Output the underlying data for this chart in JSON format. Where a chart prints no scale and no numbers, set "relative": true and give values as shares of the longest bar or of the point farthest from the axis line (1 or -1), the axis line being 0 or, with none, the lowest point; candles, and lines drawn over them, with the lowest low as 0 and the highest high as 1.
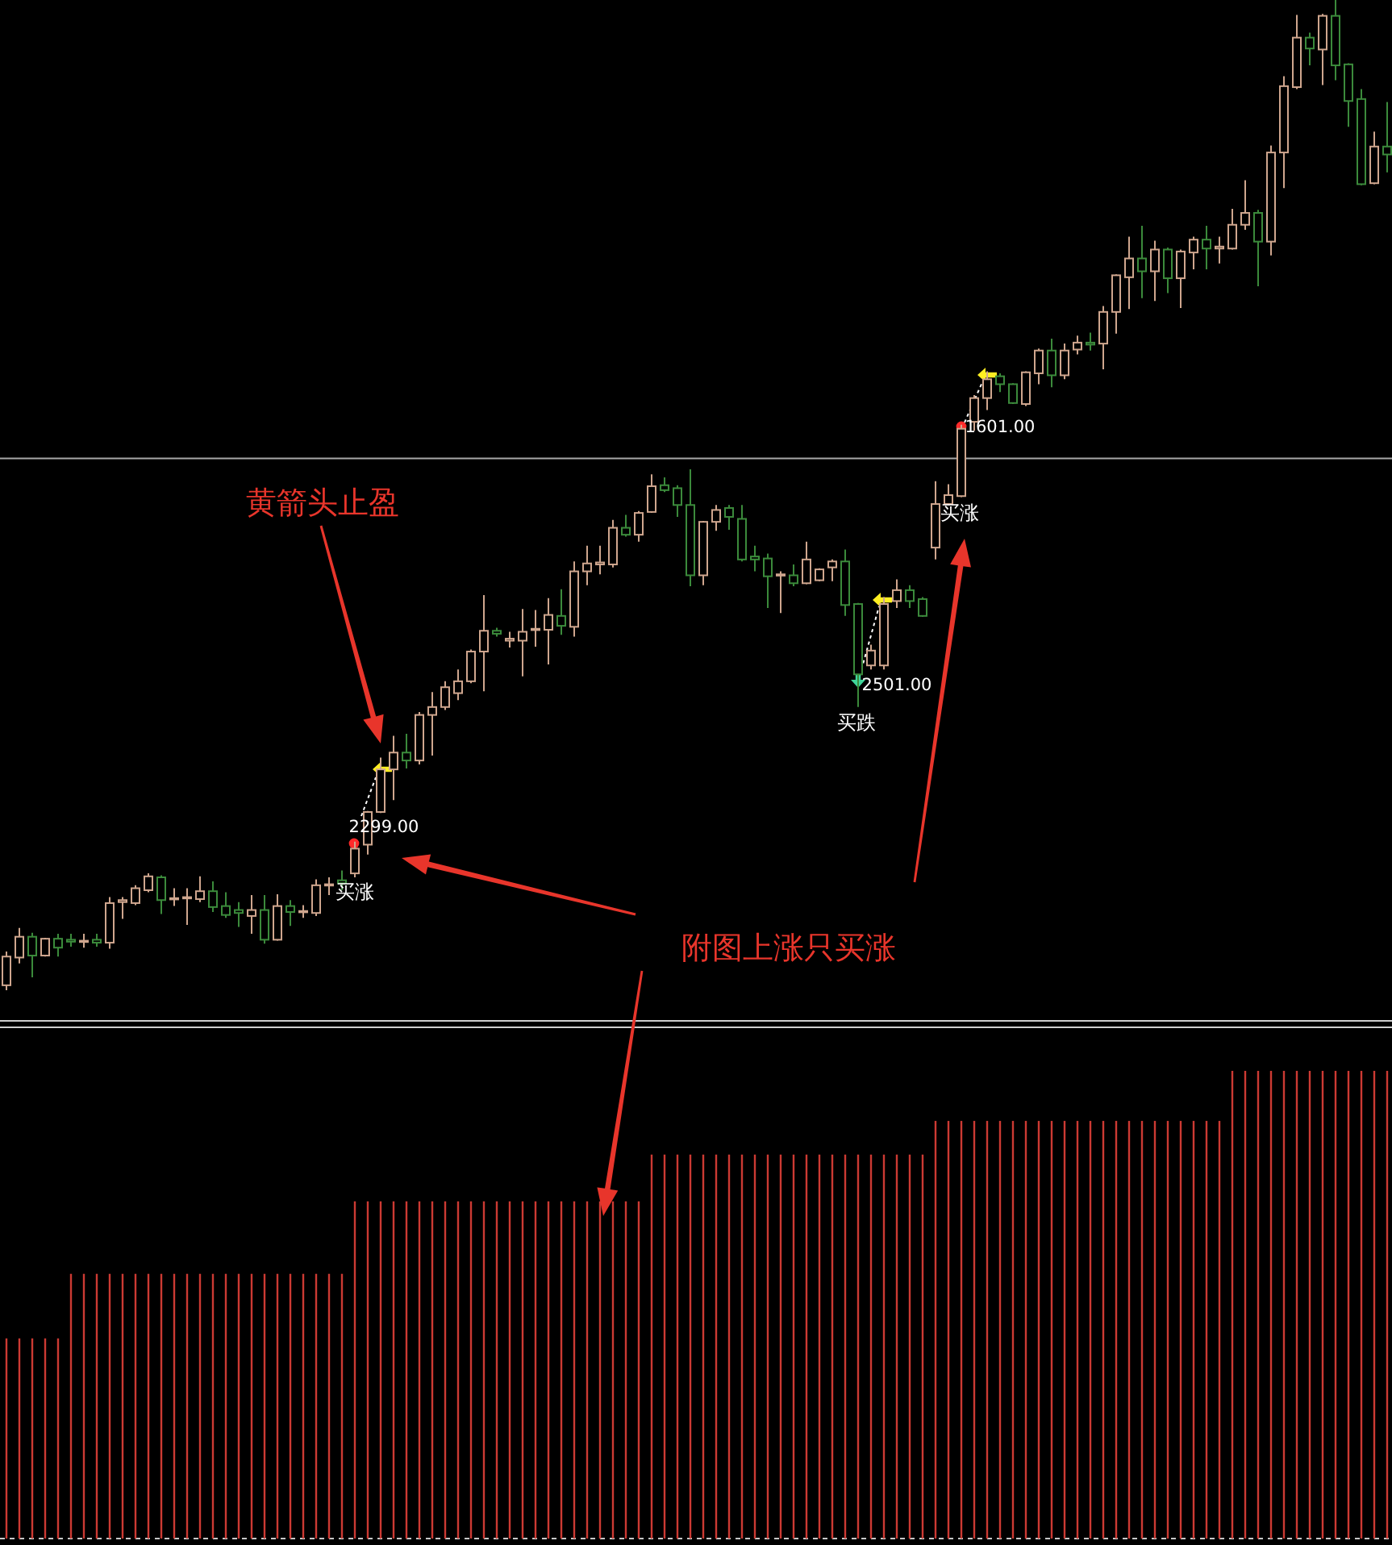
{
  "chart_data": [
    {
      "type": "candlestick",
      "relative": true,
      "categories": [
        null,
        null,
        null,
        null,
        null,
        null,
        null,
        null,
        null,
        null,
        null,
        null,
        null,
        null,
        null,
        null,
        null,
        null,
        null,
        null,
        null,
        null,
        null,
        null,
        null,
        null,
        null,
        null,
        null,
        null,
        null,
        null,
        null,
        null,
        null,
        null,
        null,
        null,
        null,
        null,
        null,
        null,
        null,
        null,
        null,
        null,
        null,
        null,
        null,
        null,
        null,
        null,
        null,
        null,
        null,
        null,
        null,
        null,
        null,
        null,
        null,
        null,
        null,
        null,
        null,
        null,
        null,
        null,
        null,
        null,
        null,
        null,
        null,
        null,
        null,
        null,
        null,
        null,
        null,
        null,
        null,
        null,
        null,
        null,
        null,
        null,
        null,
        null,
        null,
        null,
        null,
        null,
        null,
        null,
        null,
        null,
        null,
        null,
        null,
        null,
        null,
        null,
        null,
        null,
        null,
        null,
        null,
        null
      ],
      "ohlc": [
        [
          0.005,
          0.039,
          0,
          0.034
        ],
        [
          0.033,
          0.063,
          0.027,
          0.054
        ],
        [
          0.054,
          0.058,
          0.013,
          0.035
        ],
        [
          0.035,
          0.053,
          0.034,
          0.052
        ],
        [
          0.052,
          0.057,
          0.034,
          0.043
        ],
        [
          0.051,
          0.057,
          0.044,
          0.049
        ],
        [
          0.049,
          0.057,
          0.043,
          0.05
        ],
        [
          0.051,
          0.057,
          0.044,
          0.048
        ],
        [
          0.048,
          0.094,
          0.042,
          0.088
        ],
        [
          0.089,
          0.094,
          0.072,
          0.091
        ],
        [
          0.088,
          0.106,
          0.086,
          0.103
        ],
        [
          0.101,
          0.118,
          0.099,
          0.115
        ],
        [
          0.114,
          0.116,
          0.077,
          0.091
        ],
        [
          0.092,
          0.103,
          0.085,
          0.093
        ],
        [
          0.093,
          0.103,
          0.066,
          0.094
        ],
        [
          0.092,
          0.115,
          0.089,
          0.1
        ],
        [
          0.1,
          0.11,
          0.079,
          0.084
        ],
        [
          0.085,
          0.099,
          0.073,
          0.076
        ],
        [
          0.081,
          0.089,
          0.064,
          0.078
        ],
        [
          0.075,
          0.096,
          0.057,
          0.081
        ],
        [
          0.081,
          0.096,
          0.047,
          0.051
        ],
        [
          0.051,
          0.097,
          0.05,
          0.085
        ],
        [
          0.085,
          0.091,
          0.065,
          0.079
        ],
        [
          0.079,
          0.086,
          0.073,
          0.08
        ],
        [
          0.078,
          0.112,
          0.075,
          0.106
        ],
        [
          0.106,
          0.114,
          0.096,
          0.107
        ],
        [
          0.111,
          0.121,
          0.101,
          0.108
        ],
        [
          0.118,
          0.15,
          0.114,
          0.143
        ],
        [
          0.147,
          0.181,
          0.137,
          0.18
        ],
        [
          0.18,
          0.235,
          0.179,
          0.223
        ],
        [
          0.223,
          0.257,
          0.192,
          0.24
        ],
        [
          0.24,
          0.259,
          0.224,
          0.232
        ],
        [
          0.232,
          0.281,
          0.228,
          0.278
        ],
        [
          0.278,
          0.301,
          0.237,
          0.286
        ],
        [
          0.286,
          0.312,
          0.283,
          0.306
        ],
        [
          0.3,
          0.324,
          0.293,
          0.312
        ],
        [
          0.312,
          0.344,
          0.31,
          0.342
        ],
        [
          0.342,
          0.399,
          0.302,
          0.363
        ],
        [
          0.363,
          0.366,
          0.357,
          0.36
        ],
        [
          0.353,
          0.362,
          0.346,
          0.355
        ],
        [
          0.353,
          0.385,
          0.317,
          0.362
        ],
        [
          0.364,
          0.384,
          0.347,
          0.365
        ],
        [
          0.364,
          0.396,
          0.329,
          0.379
        ],
        [
          0.378,
          0.405,
          0.359,
          0.368
        ],
        [
          0.367,
          0.433,
          0.357,
          0.423
        ],
        [
          0.423,
          0.449,
          0.409,
          0.431
        ],
        [
          0.43,
          0.449,
          0.42,
          0.432
        ],
        [
          0.43,
          0.475,
          0.427,
          0.467
        ],
        [
          0.467,
          0.48,
          0.458,
          0.46
        ],
        [
          0.46,
          0.484,
          0.453,
          0.482
        ],
        [
          0.483,
          0.521,
          0.482,
          0.509
        ],
        [
          0.51,
          0.518,
          0.503,
          0.505
        ],
        [
          0.507,
          0.51,
          0.478,
          0.49
        ],
        [
          0.49,
          0.526,
          0.408,
          0.419
        ],
        [
          0.419,
          0.474,
          0.409,
          0.473
        ],
        [
          0.473,
          0.49,
          0.464,
          0.485
        ],
        [
          0.487,
          0.49,
          0.465,
          0.478
        ],
        [
          0.476,
          0.49,
          0.433,
          0.435
        ],
        [
          0.438,
          0.449,
          0.423,
          0.435
        ],
        [
          0.436,
          0.441,
          0.386,
          0.418
        ],
        [
          0.419,
          0.423,
          0.381,
          0.42
        ],
        [
          0.419,
          0.43,
          0.408,
          0.411
        ],
        [
          0.411,
          0.453,
          0.41,
          0.435
        ],
        [
          0.414,
          0.426,
          0.413,
          0.425
        ],
        [
          0.427,
          0.435,
          0.413,
          0.433
        ],
        [
          0.433,
          0.445,
          0.378,
          0.389
        ],
        [
          0.39,
          0.391,
          0.286,
          0.319
        ],
        [
          0.328,
          0.349,
          0.324,
          0.343
        ],
        [
          0.328,
          0.397,
          0.324,
          0.39
        ],
        [
          0.393,
          0.415,
          0.386,
          0.404
        ],
        [
          0.404,
          0.409,
          0.386,
          0.393
        ],
        [
          0.395,
          0.397,
          0.377,
          0.378
        ],
        [
          0.447,
          0.514,
          0.435,
          0.491
        ],
        [
          0.491,
          0.511,
          0.49,
          0.5
        ],
        [
          0.499,
          0.571,
          0.498,
          0.567
        ],
        [
          0.574,
          0.601,
          0.565,
          0.598
        ],
        [
          0.598,
          0.625,
          0.586,
          0.617
        ],
        [
          0.62,
          0.623,
          0.604,
          0.612
        ],
        [
          0.612,
          0.613,
          0.592,
          0.593
        ],
        [
          0.592,
          0.625,
          0.59,
          0.624
        ],
        [
          0.623,
          0.648,
          0.612,
          0.646
        ],
        [
          0.646,
          0.658,
          0.609,
          0.621
        ],
        [
          0.621,
          0.653,
          0.617,
          0.646
        ],
        [
          0.647,
          0.661,
          0.642,
          0.654
        ],
        [
          0.654,
          0.664,
          0.646,
          0.652
        ],
        [
          0.653,
          0.691,
          0.627,
          0.685
        ],
        [
          0.685,
          0.723,
          0.663,
          0.722
        ],
        [
          0.72,
          0.761,
          0.688,
          0.739
        ],
        [
          0.739,
          0.772,
          0.699,
          0.726
        ],
        [
          0.726,
          0.757,
          0.696,
          0.748
        ],
        [
          0.748,
          0.75,
          0.704,
          0.719
        ],
        [
          0.719,
          0.748,
          0.689,
          0.746
        ],
        [
          0.745,
          0.761,
          0.728,
          0.758
        ],
        [
          0.758,
          0.772,
          0.728,
          0.749
        ],
        [
          0.749,
          0.761,
          0.734,
          0.751
        ],
        [
          0.749,
          0.789,
          0.748,
          0.773
        ],
        [
          0.773,
          0.818,
          0.768,
          0.785
        ],
        [
          0.785,
          0.788,
          0.711,
          0.756
        ],
        [
          0.756,
          0.853,
          0.742,
          0.846
        ],
        [
          0.846,
          0.923,
          0.81,
          0.913
        ],
        [
          0.912,
          0.985,
          0.91,
          0.962
        ],
        [
          0.962,
          0.967,
          0.934,
          0.951
        ],
        [
          0.95,
          0.986,
          0.914,
          0.984
        ],
        [
          0.984,
          1,
          0.919,
          0.934
        ],
        [
          0.935,
          0.936,
          0.872,
          0.898
        ],
        [
          0.9,
          0.91,
          0.813,
          0.814
        ],
        [
          0.815,
          0.867,
          0.814,
          0.852
        ],
        [
          0.852,
          0.897,
          0.826,
          0.844
        ]
      ],
      "colors": [
        "#cfa68e",
        "#cfa68e",
        "#3b8a3b",
        "#cfa68e",
        "#3b8a3b",
        "#3b8a3b",
        "#cfa68e",
        "#3b8a3b",
        "#cfa68e",
        "#cfa68e",
        "#cfa68e",
        "#cfa68e",
        "#3b8a3b",
        "#cfa68e",
        "#cfa68e",
        "#cfa68e",
        "#3b8a3b",
        "#3b8a3b",
        "#3b8a3b",
        "#cfa68e",
        "#3b8a3b",
        "#cfa68e",
        "#3b8a3b",
        "#cfa68e",
        "#cfa68e",
        "#cfa68e",
        "#3b8a3b",
        "#cfa68e",
        "#cfa68e",
        "#cfa68e",
        "#cfa68e",
        "#3b8a3b",
        "#cfa68e",
        "#cfa68e",
        "#cfa68e",
        "#cfa68e",
        "#cfa68e",
        "#cfa68e",
        "#3b8a3b",
        "#cfa68e",
        "#cfa68e",
        "#cfa68e",
        "#cfa68e",
        "#3b8a3b",
        "#cfa68e",
        "#cfa68e",
        "#cfa68e",
        "#cfa68e",
        "#3b8a3b",
        "#cfa68e",
        "#cfa68e",
        "#3b8a3b",
        "#3b8a3b",
        "#3b8a3b",
        "#cfa68e",
        "#cfa68e",
        "#3b8a3b",
        "#3b8a3b",
        "#3b8a3b",
        "#3b8a3b",
        "#cfa68e",
        "#3b8a3b",
        "#cfa68e",
        "#cfa68e",
        "#cfa68e",
        "#3b8a3b",
        "#3b8a3b",
        "#cfa68e",
        "#cfa68e",
        "#cfa68e",
        "#3b8a3b",
        "#3b8a3b",
        "#cfa68e",
        "#cfa68e",
        "#cfa68e",
        "#cfa68e",
        "#cfa68e",
        "#3b8a3b",
        "#3b8a3b",
        "#cfa68e",
        "#cfa68e",
        "#3b8a3b",
        "#cfa68e",
        "#cfa68e",
        "#3b8a3b",
        "#cfa68e",
        "#cfa68e",
        "#cfa68e",
        "#3b8a3b",
        "#cfa68e",
        "#3b8a3b",
        "#cfa68e",
        "#cfa68e",
        "#3b8a3b",
        "#cfa68e",
        "#cfa68e",
        "#cfa68e",
        "#3b8a3b",
        "#cfa68e",
        "#cfa68e",
        "#cfa68e",
        "#3b8a3b",
        "#cfa68e",
        "#3b8a3b",
        "#3b8a3b",
        "#3b8a3b",
        "#cfa68e",
        "#3b8a3b"
      ],
      "ref_lines": [
        {
          "axis": "y",
          "value": 0.537,
          "color": "#a8a8a8"
        }
      ],
      "annotations": [
        "黄箭头止盈",
        "附图上涨只买涨",
        "2299.00",
        "买涨",
        "2501.00",
        "买跌",
        "1601.00",
        "买涨"
      ]
    },
    {
      "type": "bar",
      "relative": true,
      "categories": [
        null,
        null,
        null,
        null,
        null,
        null,
        null,
        null,
        null,
        null,
        null,
        null,
        null,
        null,
        null,
        null,
        null,
        null,
        null,
        null,
        null,
        null,
        null,
        null,
        null,
        null,
        null,
        null,
        null,
        null,
        null,
        null,
        null,
        null,
        null,
        null,
        null,
        null,
        null,
        null,
        null,
        null,
        null,
        null,
        null,
        null,
        null,
        null,
        null,
        null,
        null,
        null,
        null,
        null,
        null,
        null,
        null,
        null,
        null,
        null,
        null,
        null,
        null,
        null,
        null,
        null,
        null,
        null,
        null,
        null,
        null,
        null,
        null,
        null,
        null,
        null,
        null,
        null,
        null,
        null,
        null,
        null,
        null,
        null,
        null,
        null,
        null,
        null,
        null,
        null,
        null,
        null,
        null,
        null,
        null,
        null,
        null,
        null,
        null,
        null,
        null,
        null,
        null,
        null,
        null,
        null,
        null,
        null
      ],
      "values": [
        0.428,
        0.428,
        0.428,
        0.428,
        0.428,
        0.566,
        0.566,
        0.566,
        0.566,
        0.566,
        0.566,
        0.566,
        0.566,
        0.566,
        0.566,
        0.566,
        0.566,
        0.566,
        0.566,
        0.566,
        0.566,
        0.566,
        0.566,
        0.566,
        0.566,
        0.566,
        0.566,
        0.721,
        0.721,
        0.721,
        0.721,
        0.721,
        0.721,
        0.721,
        0.721,
        0.721,
        0.721,
        0.721,
        0.721,
        0.721,
        0.721,
        0.721,
        0.721,
        0.721,
        0.721,
        0.721,
        0.721,
        0.721,
        0.721,
        0.721,
        0.821,
        0.821,
        0.821,
        0.821,
        0.821,
        0.821,
        0.821,
        0.821,
        0.821,
        0.821,
        0.821,
        0.821,
        0.821,
        0.821,
        0.821,
        0.821,
        0.821,
        0.821,
        0.821,
        0.821,
        0.821,
        0.821,
        0.893,
        0.893,
        0.893,
        0.893,
        0.893,
        0.893,
        0.893,
        0.893,
        0.893,
        0.893,
        0.893,
        0.893,
        0.893,
        0.893,
        0.893,
        0.893,
        0.893,
        0.893,
        0.893,
        0.893,
        0.893,
        0.893,
        0.893,
        1,
        1,
        1,
        1,
        1,
        1,
        1,
        1,
        1,
        1,
        1,
        1,
        1
      ],
      "color": "#cc3a33"
    }
  ]
}
